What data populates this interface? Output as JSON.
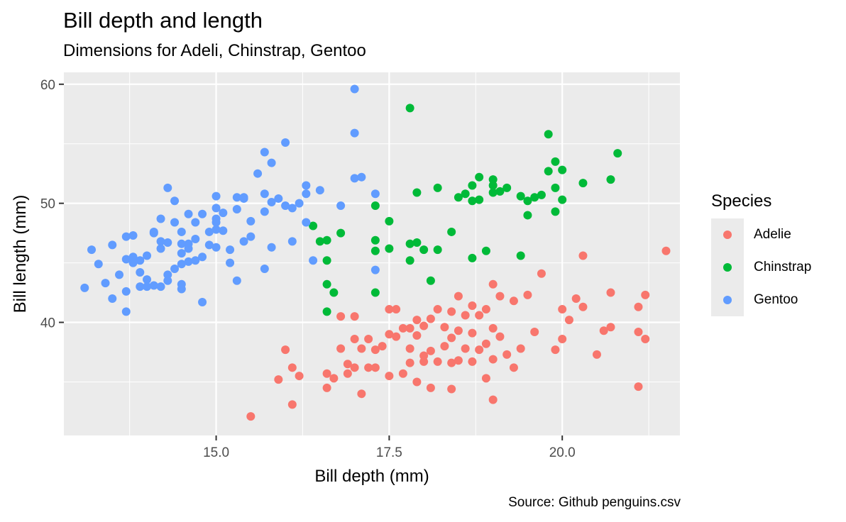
{
  "title": "Bill depth and length",
  "subtitle": "Dimensions for Adeli, Chinstrap, Gentoo",
  "caption": "Source: Github penguins.csv",
  "legend": {
    "title": "Species",
    "items": [
      {
        "label": "Adelie",
        "color": "#F8766D"
      },
      {
        "label": "Chinstrap",
        "color": "#00BA38"
      },
      {
        "label": "Gentoo",
        "color": "#619CFF"
      }
    ]
  },
  "colors": {
    "panel": "#EBEBEB",
    "grid": "#FFFFFF",
    "axis_text": "#4D4D4D"
  },
  "chart_data": {
    "type": "scatter",
    "title": "Bill depth and length",
    "subtitle": "Dimensions for Adeli, Chinstrap, Gentoo",
    "caption": "Source: Github penguins.csv",
    "xlabel": "Bill depth (mm)",
    "ylabel": "Bill length (mm)",
    "xlim": [
      12.8,
      21.7
    ],
    "ylim": [
      30.5,
      61.0
    ],
    "xticks": [
      15.0,
      17.5,
      20.0
    ],
    "xtick_labels": [
      "15.0",
      "17.5",
      "20.0"
    ],
    "yticks": [
      40,
      50,
      60
    ],
    "ytick_labels": [
      "40",
      "50",
      "60"
    ],
    "grid": true,
    "legend_position": "right",
    "series": [
      {
        "name": "Adelie",
        "color": "#F8766D",
        "points": [
          [
            15.5,
            32.1
          ],
          [
            16.1,
            33.1
          ],
          [
            15.9,
            35.2
          ],
          [
            16.2,
            35.5
          ],
          [
            16.1,
            36.2
          ],
          [
            16.0,
            37.7
          ],
          [
            16.6,
            34.5
          ],
          [
            16.6,
            35.7
          ],
          [
            16.7,
            35.3
          ],
          [
            16.8,
            37.8
          ],
          [
            16.8,
            40.5
          ],
          [
            16.9,
            36.5
          ],
          [
            16.9,
            35.7
          ],
          [
            17.0,
            36.2
          ],
          [
            17.0,
            38.6
          ],
          [
            17.0,
            40.5
          ],
          [
            17.1,
            34.0
          ],
          [
            17.1,
            37.8
          ],
          [
            17.2,
            36.2
          ],
          [
            17.2,
            38.6
          ],
          [
            17.3,
            36.2
          ],
          [
            17.3,
            37.7
          ],
          [
            17.4,
            38.0
          ],
          [
            17.5,
            35.5
          ],
          [
            17.5,
            39.0
          ],
          [
            17.5,
            41.1
          ],
          [
            17.6,
            38.8
          ],
          [
            17.6,
            41.1
          ],
          [
            17.7,
            35.7
          ],
          [
            17.7,
            39.5
          ],
          [
            17.8,
            36.6
          ],
          [
            17.8,
            37.8
          ],
          [
            17.8,
            39.5
          ],
          [
            17.9,
            35.0
          ],
          [
            17.9,
            38.9
          ],
          [
            17.9,
            40.2
          ],
          [
            18.0,
            36.7
          ],
          [
            18.0,
            37.2
          ],
          [
            18.0,
            39.7
          ],
          [
            18.1,
            34.5
          ],
          [
            18.1,
            37.6
          ],
          [
            18.1,
            40.3
          ],
          [
            18.2,
            36.7
          ],
          [
            18.2,
            41.1
          ],
          [
            18.3,
            38.0
          ],
          [
            18.3,
            39.6
          ],
          [
            18.4,
            34.4
          ],
          [
            18.4,
            36.6
          ],
          [
            18.4,
            38.7
          ],
          [
            18.4,
            40.9
          ],
          [
            18.5,
            36.8
          ],
          [
            18.5,
            39.3
          ],
          [
            18.5,
            42.2
          ],
          [
            18.6,
            37.8
          ],
          [
            18.6,
            40.6
          ],
          [
            18.7,
            36.7
          ],
          [
            18.7,
            39.1
          ],
          [
            18.7,
            41.4
          ],
          [
            18.8,
            37.7
          ],
          [
            18.8,
            40.6
          ],
          [
            18.9,
            35.3
          ],
          [
            18.9,
            38.2
          ],
          [
            18.9,
            41.1
          ],
          [
            19.0,
            33.5
          ],
          [
            19.0,
            36.9
          ],
          [
            19.0,
            39.5
          ],
          [
            19.0,
            43.2
          ],
          [
            19.1,
            38.8
          ],
          [
            19.1,
            42.2
          ],
          [
            19.2,
            37.3
          ],
          [
            19.3,
            36.2
          ],
          [
            19.3,
            41.8
          ],
          [
            19.4,
            37.8
          ],
          [
            19.5,
            42.3
          ],
          [
            19.6,
            39.2
          ],
          [
            19.7,
            44.1
          ],
          [
            19.9,
            37.7
          ],
          [
            20.0,
            38.6
          ],
          [
            20.0,
            41.1
          ],
          [
            20.1,
            40.2
          ],
          [
            20.2,
            42.0
          ],
          [
            20.3,
            45.6
          ],
          [
            20.3,
            41.3
          ],
          [
            20.5,
            37.3
          ],
          [
            20.6,
            39.3
          ],
          [
            20.7,
            39.6
          ],
          [
            20.7,
            42.5
          ],
          [
            21.1,
            34.6
          ],
          [
            21.1,
            39.2
          ],
          [
            21.1,
            41.3
          ],
          [
            21.2,
            42.3
          ],
          [
            21.2,
            38.6
          ],
          [
            21.5,
            46.0
          ]
        ]
      },
      {
        "name": "Chinstrap",
        "color": "#00BA38",
        "points": [
          [
            16.4,
            48.1
          ],
          [
            16.5,
            46.8
          ],
          [
            16.6,
            46.9
          ],
          [
            16.6,
            45.2
          ],
          [
            16.6,
            43.2
          ],
          [
            16.6,
            40.9
          ],
          [
            16.7,
            42.5
          ],
          [
            16.8,
            47.5
          ],
          [
            17.3,
            49.8
          ],
          [
            17.3,
            46.9
          ],
          [
            17.3,
            46.0
          ],
          [
            17.3,
            42.5
          ],
          [
            17.5,
            48.5
          ],
          [
            17.5,
            46.2
          ],
          [
            17.8,
            58.0
          ],
          [
            17.8,
            46.6
          ],
          [
            17.8,
            45.2
          ],
          [
            17.9,
            50.9
          ],
          [
            17.9,
            46.7
          ],
          [
            18.1,
            43.5
          ],
          [
            18.2,
            51.3
          ],
          [
            18.2,
            46.1
          ],
          [
            18.4,
            47.6
          ],
          [
            18.5,
            50.5
          ],
          [
            18.6,
            50.8
          ],
          [
            18.7,
            51.5
          ],
          [
            18.7,
            50.2
          ],
          [
            18.8,
            52.2
          ],
          [
            18.8,
            50.3
          ],
          [
            18.9,
            46.0
          ],
          [
            19.0,
            52.0
          ],
          [
            19.0,
            51.5
          ],
          [
            19.0,
            50.9
          ],
          [
            19.1,
            51.0
          ],
          [
            19.2,
            51.3
          ],
          [
            19.4,
            50.6
          ],
          [
            19.5,
            50.2
          ],
          [
            19.5,
            49.0
          ],
          [
            19.6,
            50.5
          ],
          [
            19.7,
            50.7
          ],
          [
            19.8,
            55.8
          ],
          [
            19.8,
            52.7
          ],
          [
            19.9,
            53.5
          ],
          [
            19.9,
            51.3
          ],
          [
            19.9,
            49.3
          ],
          [
            20.0,
            52.8
          ],
          [
            20.0,
            50.3
          ],
          [
            20.3,
            51.7
          ],
          [
            20.7,
            52.0
          ],
          [
            20.8,
            54.2
          ],
          [
            18.7,
            45.4
          ],
          [
            19.4,
            45.6
          ],
          [
            18.0,
            46.1
          ]
        ]
      },
      {
        "name": "Gentoo",
        "color": "#619CFF",
        "points": [
          [
            13.1,
            42.9
          ],
          [
            13.2,
            46.1
          ],
          [
            13.3,
            44.9
          ],
          [
            13.4,
            43.3
          ],
          [
            13.5,
            46.5
          ],
          [
            13.5,
            42.0
          ],
          [
            13.6,
            44.0
          ],
          [
            13.7,
            47.2
          ],
          [
            13.7,
            45.3
          ],
          [
            13.7,
            42.6
          ],
          [
            13.7,
            40.9
          ],
          [
            13.8,
            47.3
          ],
          [
            13.8,
            45.5
          ],
          [
            13.8,
            45.0
          ],
          [
            13.9,
            45.2
          ],
          [
            13.9,
            44.2
          ],
          [
            14.0,
            45.6
          ],
          [
            14.0,
            43.6
          ],
          [
            14.1,
            47.5
          ],
          [
            14.1,
            43.1
          ],
          [
            14.2,
            48.7
          ],
          [
            14.2,
            46.2
          ],
          [
            14.2,
            43.0
          ],
          [
            14.3,
            51.3
          ],
          [
            14.3,
            46.7
          ],
          [
            14.3,
            43.5
          ],
          [
            14.4,
            50.2
          ],
          [
            14.4,
            48.4
          ],
          [
            14.4,
            44.5
          ],
          [
            14.5,
            47.6
          ],
          [
            14.5,
            45.8
          ],
          [
            14.5,
            44.9
          ],
          [
            14.5,
            42.8
          ],
          [
            14.6,
            49.1
          ],
          [
            14.6,
            46.6
          ],
          [
            14.6,
            45.1
          ],
          [
            14.7,
            48.4
          ],
          [
            14.7,
            47.0
          ],
          [
            14.7,
            45.2
          ],
          [
            14.8,
            41.7
          ],
          [
            14.8,
            45.5
          ],
          [
            14.8,
            49.1
          ],
          [
            14.9,
            46.5
          ],
          [
            15.0,
            50.6
          ],
          [
            15.0,
            49.6
          ],
          [
            15.0,
            48.4
          ],
          [
            15.0,
            46.3
          ],
          [
            15.1,
            49.2
          ],
          [
            15.1,
            47.7
          ],
          [
            15.2,
            46.1
          ],
          [
            15.3,
            50.5
          ],
          [
            15.3,
            49.5
          ],
          [
            15.3,
            43.5
          ],
          [
            15.4,
            50.4
          ],
          [
            15.4,
            46.8
          ],
          [
            15.5,
            48.5
          ],
          [
            15.6,
            52.5
          ],
          [
            15.7,
            54.3
          ],
          [
            15.7,
            50.8
          ],
          [
            15.7,
            49.3
          ],
          [
            15.8,
            53.4
          ],
          [
            15.8,
            50.1
          ],
          [
            15.8,
            46.3
          ],
          [
            15.9,
            50.4
          ],
          [
            16.0,
            55.1
          ],
          [
            16.0,
            49.8
          ],
          [
            16.1,
            49.6
          ],
          [
            16.1,
            46.8
          ],
          [
            16.2,
            50.0
          ],
          [
            16.3,
            51.5
          ],
          [
            16.3,
            50.8
          ],
          [
            16.3,
            48.4
          ],
          [
            16.5,
            51.1
          ],
          [
            16.8,
            49.8
          ],
          [
            17.0,
            59.6
          ],
          [
            17.0,
            55.9
          ],
          [
            17.0,
            52.1
          ],
          [
            17.1,
            52.2
          ],
          [
            17.3,
            50.8
          ],
          [
            17.3,
            44.4
          ],
          [
            16.4,
            45.2
          ],
          [
            15.7,
            44.5
          ],
          [
            15.5,
            47.2
          ],
          [
            15.2,
            45.0
          ],
          [
            14.5,
            43.2
          ],
          [
            14.9,
            47.6
          ],
          [
            15.0,
            48.7
          ],
          [
            15.4,
            50.5
          ],
          [
            13.9,
            43.0
          ],
          [
            14.2,
            46.8
          ],
          [
            14.6,
            46.2
          ],
          [
            15.0,
            47.8
          ],
          [
            14.0,
            43.0
          ],
          [
            14.5,
            46.6
          ],
          [
            14.1,
            47.6
          ],
          [
            14.3,
            44.0
          ]
        ]
      }
    ]
  }
}
